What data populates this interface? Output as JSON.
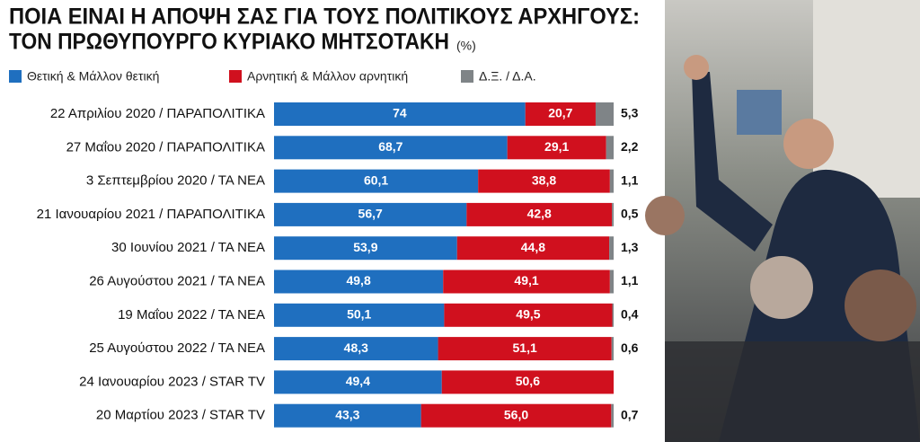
{
  "chart_data": {
    "type": "stacked-bar-horizontal",
    "title": [
      "ΠΟΙΑ ΕΙΝΑΙ Η ΑΠΟΨΗ ΣΑΣ ΓΙΑ ΤΟΥΣ ΠΟΛΙΤΙΚΟΥΣ ΑΡΧΗΓΟΥΣ:",
      "ΤΟΝ ΠΡΩΘΥΠΟΥΡΓΟ ΚΥΡΙΑΚΟ ΜΗΤΣΟΤΑΚΗ"
    ],
    "unit": "(%)",
    "categories": [
      "22 Απριλίου 2020 / ΠΑΡΑΠΟΛΙΤΙΚΑ",
      "27 Μαΐου 2020 / ΠΑΡΑΠΟΛΙΤΙΚΑ",
      "3 Σεπτεμβρίου 2020 / ΤΑ ΝΕΑ",
      "21 Ιανουαρίου 2021 / ΠΑΡΑΠΟΛΙΤΙΚΑ",
      "30 Ιουνίου 2021 / ΤΑ ΝΕΑ",
      "26 Αυγούστου 2021 / ΤΑ ΝΕΑ",
      "19 Μαΐου 2022 / ΤΑ ΝΕΑ",
      "25 Αυγούστου 2022 / ΤΑ ΝΕΑ",
      "24 Ιανουαρίου 2023 / STAR TV",
      "20 Μαρτίου 2023 / STAR TV"
    ],
    "xlim": [
      0,
      100
    ],
    "series": [
      {
        "name": "Θετική & Μάλλον θετική",
        "color": "#1f6fbf",
        "values": [
          74,
          68.7,
          60.1,
          56.7,
          53.9,
          49.8,
          50.1,
          48.3,
          49.4,
          43.3
        ],
        "value_labels": [
          "74",
          "68,7",
          "60,1",
          "56,7",
          "53,9",
          "49,8",
          "50,1",
          "48,3",
          "49,4",
          "43,3"
        ]
      },
      {
        "name": "Αρνητική & Μάλλον αρνητική",
        "color": "#d0101e",
        "values": [
          20.7,
          29.1,
          38.8,
          42.8,
          44.8,
          49.1,
          49.5,
          51.1,
          50.6,
          56.0
        ],
        "value_labels": [
          "20,7",
          "29,1",
          "38,8",
          "42,8",
          "44,8",
          "49,1",
          "49,5",
          "51,1",
          "50,6",
          "56,0"
        ]
      },
      {
        "name": "Δ.Ξ. / Δ.Α.",
        "color": "#7f8487",
        "values": [
          5.3,
          2.2,
          1.1,
          0.5,
          1.3,
          1.1,
          0.4,
          0.6,
          null,
          0.7
        ],
        "value_labels": [
          "5,3",
          "2,2",
          "1,1",
          "0,5",
          "1,3",
          "1,1",
          "0,4",
          "0,6",
          null,
          "0,7"
        ]
      }
    ]
  }
}
